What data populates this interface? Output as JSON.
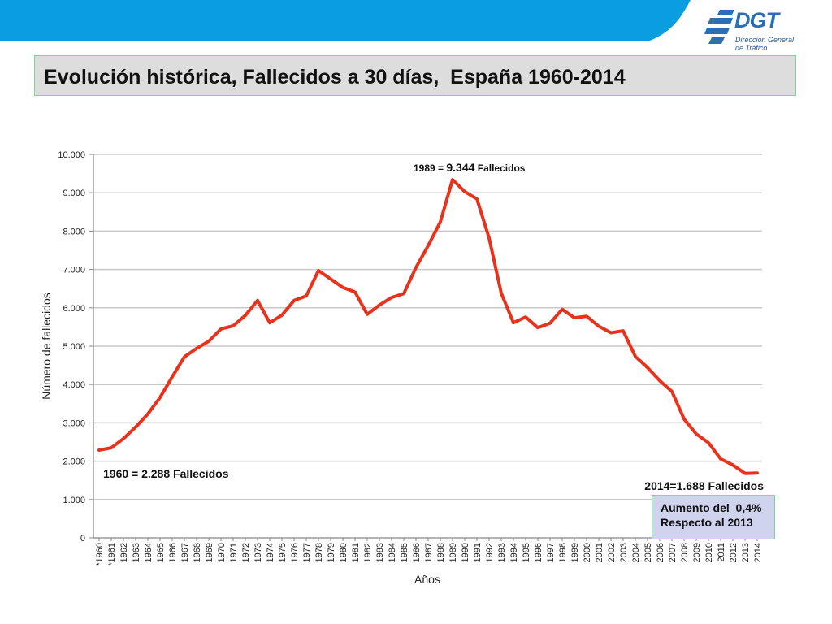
{
  "logo": {
    "name": "DGT",
    "subtitle_line1": "Dirección General",
    "subtitle_line2": "de Tráfico"
  },
  "colors": {
    "top_band": "#0a9ee0",
    "series": "#e8321c",
    "grid": "#c8c8c8",
    "note_bg": "#cfd3ee",
    "title_bg": "#dddddd"
  },
  "title": "Evolución histórica, Fallecidos a 30 días,  España 1960-2014",
  "note": {
    "line1": "Aumento del  0,4%",
    "line2": "Respecto al 2013"
  },
  "chart_data": {
    "type": "line",
    "title": "",
    "xlabel": "Años",
    "ylabel": "Número de fallecidos",
    "ylim": [
      0,
      10000
    ],
    "grid": true,
    "legend": "none",
    "yticks": [
      "0",
      "1.000",
      "2.000",
      "3.000",
      "4.000",
      "5.000",
      "6.000",
      "7.000",
      "8.000",
      "9.000",
      "10.000"
    ],
    "categories": [
      "*1960",
      "*1961",
      "1962",
      "1963",
      "1964",
      "1965",
      "1966",
      "1967",
      "1968",
      "1969",
      "1970",
      "1971",
      "1972",
      "1973",
      "1974",
      "1975",
      "1976",
      "1977",
      "1978",
      "1979",
      "1980",
      "1981",
      "1982",
      "1983",
      "1984",
      "1985",
      "1986",
      "1987",
      "1988",
      "1989",
      "1990",
      "1991",
      "1992",
      "1993",
      "1994",
      "1995",
      "1996",
      "1997",
      "1998",
      "1999",
      "2000",
      "2001",
      "2002",
      "2003",
      "2004",
      "2005",
      "2006",
      "2007",
      "2008",
      "2009",
      "2010",
      "2011",
      "2012",
      "2013",
      "2014"
    ],
    "series": [
      {
        "values": [
          2288,
          2350,
          2590,
          2890,
          3230,
          3660,
          4200,
          4720,
          4940,
          5130,
          5450,
          5530,
          5800,
          6190,
          5610,
          5810,
          6190,
          6310,
          6970,
          6750,
          6530,
          6410,
          5830,
          6070,
          6270,
          6370,
          7050,
          7620,
          8240,
          9344,
          9030,
          8840,
          7820,
          6380,
          5610,
          5760,
          5480,
          5600,
          5960,
          5740,
          5780,
          5520,
          5350,
          5400,
          4730,
          4440,
          4100,
          3820,
          3100,
          2710,
          2480,
          2060,
          1900,
          1680,
          1688
        ]
      }
    ],
    "annotations": [
      {
        "text_left": "1989 = ",
        "text_mid": "9.344",
        "text_right": " Fallecidos",
        "year": "1989"
      },
      {
        "text": "1960 = 2.288 Fallecidos",
        "year": "*1960"
      },
      {
        "text": "2014=1.688  Fallecidos",
        "year": "2014"
      }
    ]
  }
}
